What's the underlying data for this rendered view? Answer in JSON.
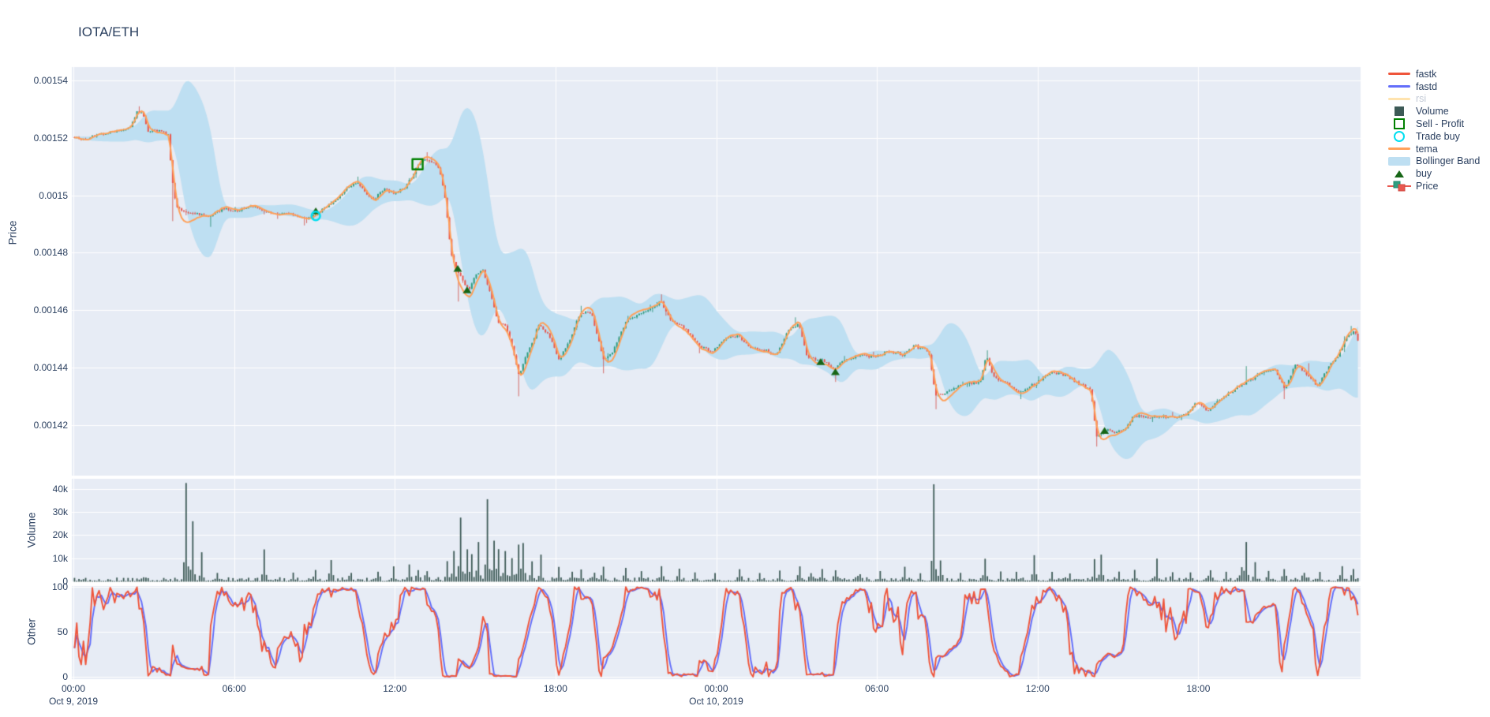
{
  "title": "IOTA/ETH",
  "colors": {
    "panel_bg": "#E7ECF5",
    "grid": "#ffffff",
    "text": "#2a3f5f",
    "text_faded": "#c3cad6",
    "up": "#2f9e80",
    "up_line": "#1f8a6d",
    "down": "#e9584f",
    "down_line": "#d04a43",
    "tema": "#FFA15A",
    "band": "#BEDFF2",
    "fastk": "#EF553B",
    "fastd": "#636EFA",
    "rsi_faded": "#ffe3ae",
    "volume_bar": "#3D5A56",
    "buy": "#176617",
    "sell": "#008000",
    "trade_buy": "#00DEF0"
  },
  "axes": {
    "price": {
      "title": "Price",
      "ticks": [
        {
          "label": "0.00154",
          "value": 0.00154
        },
        {
          "label": "0.00152",
          "value": 0.00152
        },
        {
          "label": "0.0015",
          "value": 0.0015
        },
        {
          "label": "0.00148",
          "value": 0.00148
        },
        {
          "label": "0.00146",
          "value": 0.00146
        },
        {
          "label": "0.00144",
          "value": 0.00144
        },
        {
          "label": "0.00142",
          "value": 0.00142
        }
      ]
    },
    "volume": {
      "title": "Volume",
      "ticks": [
        {
          "label": "40k",
          "value": 40000
        },
        {
          "label": "30k",
          "value": 30000
        },
        {
          "label": "20k",
          "value": 20000
        },
        {
          "label": "10k",
          "value": 10000
        },
        {
          "label": "0",
          "value": 0
        }
      ]
    },
    "other": {
      "title": "Other",
      "ticks": [
        {
          "label": "100",
          "value": 100
        },
        {
          "label": "50",
          "value": 50
        },
        {
          "label": "0",
          "value": 0
        }
      ]
    },
    "x": {
      "ticks": [
        {
          "label": "00:00",
          "t": 0
        },
        {
          "label": "06:00",
          "t": 6
        },
        {
          "label": "12:00",
          "t": 12
        },
        {
          "label": "18:00",
          "t": 18
        },
        {
          "label": "00:00",
          "t": 24
        },
        {
          "label": "06:00",
          "t": 30
        },
        {
          "label": "12:00",
          "t": 36
        },
        {
          "label": "18:00",
          "t": 42
        }
      ],
      "dates": [
        {
          "label": "Oct 9, 2019",
          "t": 0
        },
        {
          "label": "Oct 10, 2019",
          "t": 24
        }
      ]
    }
  },
  "legend": [
    {
      "id": "fastk",
      "label": "fastk",
      "swatch": "line",
      "color": "#EF553B"
    },
    {
      "id": "fastd",
      "label": "fastd",
      "swatch": "line",
      "color": "#636EFA"
    },
    {
      "id": "rsi",
      "label": "rsi",
      "swatch": "line",
      "color": "#ffe3ae",
      "faded": true
    },
    {
      "id": "volume",
      "label": "Volume",
      "swatch": "square",
      "color": "#3D5A56"
    },
    {
      "id": "sell-profit",
      "label": "Sell - Profit",
      "swatch": "open-square",
      "color": "#008000"
    },
    {
      "id": "trade-buy",
      "label": "Trade buy",
      "swatch": "open-circle",
      "color": "#00DEF0"
    },
    {
      "id": "tema",
      "label": "tema",
      "swatch": "line",
      "color": "#FFA15A"
    },
    {
      "id": "bollinger",
      "label": "Bollinger Band",
      "swatch": "band",
      "color": "#BEDFF2"
    },
    {
      "id": "buy",
      "label": "buy",
      "swatch": "triangle",
      "color": "#176617"
    },
    {
      "id": "price",
      "label": "Price",
      "swatch": "candle",
      "color": "#2f9e80"
    }
  ],
  "chart_data": [
    {
      "type": "candlestick",
      "panel": "price",
      "name": "Price",
      "ylabel": "Price",
      "x_start": "Oct 9, 2019 00:00",
      "x_range_hours": [
        0,
        48
      ],
      "candle_minutes": 5,
      "ylim": [
        0.001402,
        0.0015445
      ],
      "price_anchors": [
        [
          0,
          0.0015205
        ],
        [
          0.4,
          0.0015195
        ],
        [
          0.8,
          0.001521
        ],
        [
          1.3,
          0.0015215
        ],
        [
          1.8,
          0.0015225
        ],
        [
          2.1,
          0.001524
        ],
        [
          2.35,
          0.0015295
        ],
        [
          2.55,
          0.0015285
        ],
        [
          2.75,
          0.001522
        ],
        [
          3.1,
          0.0015225
        ],
        [
          3.5,
          0.001521
        ],
        [
          3.65,
          0.0015055
        ],
        [
          3.8,
          0.0014965
        ],
        [
          4.2,
          0.0014945
        ],
        [
          4.7,
          0.001494
        ],
        [
          5.1,
          0.0014935
        ],
        [
          5.5,
          0.0014955
        ],
        [
          6,
          0.0014945
        ],
        [
          6.5,
          0.0014955
        ],
        [
          7,
          0.001495
        ],
        [
          7.5,
          0.0014935
        ],
        [
          8,
          0.0014945
        ],
        [
          8.6,
          0.0014925
        ],
        [
          9.05,
          0.0014935
        ],
        [
          9.5,
          0.0014965
        ],
        [
          9.9,
          0.0014995
        ],
        [
          10.3,
          0.0015035
        ],
        [
          10.6,
          0.0015045
        ],
        [
          10.9,
          0.0015005
        ],
        [
          11.2,
          0.0014985
        ],
        [
          11.6,
          0.0015025
        ],
        [
          11.95,
          0.0015005
        ],
        [
          12.3,
          0.0015025
        ],
        [
          12.6,
          0.0015065
        ],
        [
          12.85,
          0.0015105
        ],
        [
          13.1,
          0.0015125
        ],
        [
          13.45,
          0.0015115
        ],
        [
          13.65,
          0.0015085
        ],
        [
          13.85,
          0.0014985
        ],
        [
          14.05,
          0.0014795
        ],
        [
          14.3,
          0.0014735
        ],
        [
          14.55,
          0.0014695
        ],
        [
          14.75,
          0.0014675
        ],
        [
          15,
          0.0014725
        ],
        [
          15.25,
          0.0014745
        ],
        [
          15.55,
          0.0014645
        ],
        [
          15.8,
          0.0014555
        ],
        [
          16.1,
          0.0014545
        ],
        [
          16.35,
          0.0014465
        ],
        [
          16.6,
          0.0014365
        ],
        [
          16.8,
          0.0014425
        ],
        [
          17.1,
          0.0014485
        ],
        [
          17.35,
          0.0014555
        ],
        [
          17.7,
          0.0014515
        ],
        [
          18.1,
          0.0014425
        ],
        [
          18.5,
          0.0014495
        ],
        [
          18.9,
          0.0014595
        ],
        [
          19.3,
          0.0014595
        ],
        [
          19.75,
          0.0014435
        ],
        [
          20.1,
          0.0014455
        ],
        [
          20.55,
          0.0014555
        ],
        [
          21,
          0.0014585
        ],
        [
          21.5,
          0.0014605
        ],
        [
          21.9,
          0.0014625
        ],
        [
          22.3,
          0.0014555
        ],
        [
          22.8,
          0.0014535
        ],
        [
          23.3,
          0.0014475
        ],
        [
          23.8,
          0.0014455
        ],
        [
          24.3,
          0.0014505
        ],
        [
          24.8,
          0.0014515
        ],
        [
          25.2,
          0.0014475
        ],
        [
          25.7,
          0.0014465
        ],
        [
          26.2,
          0.0014445
        ],
        [
          26.65,
          0.0014525
        ],
        [
          27.05,
          0.0014555
        ],
        [
          27.35,
          0.0014435
        ],
        [
          27.9,
          0.0014425
        ],
        [
          28.4,
          0.0014395
        ],
        [
          28.8,
          0.0014425
        ],
        [
          29.3,
          0.0014445
        ],
        [
          29.8,
          0.0014435
        ],
        [
          30.3,
          0.0014455
        ],
        [
          30.9,
          0.0014445
        ],
        [
          31.4,
          0.0014475
        ],
        [
          31.9,
          0.0014455
        ],
        [
          32.15,
          0.0014305
        ],
        [
          32.6,
          0.0014315
        ],
        [
          33.2,
          0.0014345
        ],
        [
          33.8,
          0.0014355
        ],
        [
          34.05,
          0.0014445
        ],
        [
          34.35,
          0.0014365
        ],
        [
          34.9,
          0.0014345
        ],
        [
          35.3,
          0.0014315
        ],
        [
          35.9,
          0.0014345
        ],
        [
          36.5,
          0.0014385
        ],
        [
          37,
          0.0014375
        ],
        [
          37.5,
          0.0014345
        ],
        [
          37.95,
          0.0014325
        ],
        [
          38.15,
          0.0014165
        ],
        [
          38.5,
          0.0014185
        ],
        [
          38.9,
          0.0014175
        ],
        [
          39.2,
          0.0014185
        ],
        [
          39.6,
          0.0014235
        ],
        [
          40.2,
          0.0014225
        ],
        [
          40.9,
          0.0014225
        ],
        [
          41.5,
          0.0014235
        ],
        [
          41.9,
          0.0014275
        ],
        [
          42.3,
          0.0014245
        ],
        [
          42.8,
          0.0014295
        ],
        [
          43.3,
          0.0014325
        ],
        [
          43.8,
          0.0014355
        ],
        [
          44.3,
          0.0014375
        ],
        [
          44.8,
          0.0014395
        ],
        [
          45.2,
          0.0014325
        ],
        [
          45.6,
          0.0014405
        ],
        [
          46,
          0.0014375
        ],
        [
          46.4,
          0.0014335
        ],
        [
          46.8,
          0.0014395
        ],
        [
          47.2,
          0.0014445
        ],
        [
          47.55,
          0.0014515
        ],
        [
          47.8,
          0.0014525
        ],
        [
          48,
          0.0014465
        ]
      ],
      "wick_lows": [
        [
          3.65,
          0.001491
        ],
        [
          5.1,
          0.001489
        ],
        [
          8.6,
          0.0014895
        ],
        [
          14.3,
          0.001463
        ],
        [
          16.6,
          0.00143
        ],
        [
          19.75,
          0.001438
        ],
        [
          23.3,
          0.001445
        ],
        [
          28.45,
          0.001435
        ],
        [
          32.2,
          0.0014255
        ],
        [
          35.3,
          0.001429
        ],
        [
          38.2,
          0.0014125
        ],
        [
          45.2,
          0.001429
        ]
      ],
      "wick_highs": [
        [
          2.4,
          0.001531
        ],
        [
          10.55,
          0.0015065
        ],
        [
          13.15,
          0.001515
        ],
        [
          18.95,
          0.0014615
        ],
        [
          21.95,
          0.0014655
        ],
        [
          26.9,
          0.0014575
        ],
        [
          34.05,
          0.001446
        ],
        [
          43.75,
          0.0014405
        ],
        [
          46.05,
          0.0014415
        ],
        [
          47.65,
          0.0014545
        ]
      ],
      "overlays": [
        {
          "name": "tema",
          "type": "tema",
          "period": 9,
          "color": "#FFA15A"
        },
        {
          "name": "Bollinger Band",
          "type": "bollinger",
          "window": 20,
          "stdev_mult": 2.1,
          "color": "#BEDFF2"
        },
        {
          "name": "rsi",
          "visible": false
        }
      ],
      "markers": {
        "buy": [
          [
            9.05,
            0.0014945
          ],
          [
            14.35,
            0.0014745
          ],
          [
            14.7,
            0.001467
          ],
          [
            27.9,
            0.001442
          ],
          [
            28.45,
            0.0014385
          ],
          [
            38.5,
            0.001418
          ]
        ],
        "trade_buy": [
          [
            9.05,
            0.0014928
          ]
        ],
        "sell_profit": [
          [
            12.85,
            0.0015108
          ]
        ]
      }
    },
    {
      "type": "bar",
      "panel": "volume",
      "name": "Volume",
      "ylabel": "Volume",
      "ylim": [
        0,
        45000
      ],
      "base_volume_range": [
        150,
        1800
      ],
      "volume_spikes": [
        [
          4.2,
          40500
        ],
        [
          4.45,
          24000
        ],
        [
          4.75,
          11500
        ],
        [
          5.3,
          4000
        ],
        [
          7.1,
          13000
        ],
        [
          8.2,
          3500
        ],
        [
          9,
          4500
        ],
        [
          9.6,
          10000
        ],
        [
          10.3,
          4000
        ],
        [
          11.3,
          4500
        ],
        [
          11.9,
          6000
        ],
        [
          12.5,
          7500
        ],
        [
          12.85,
          5000
        ],
        [
          13.2,
          4500
        ],
        [
          13.9,
          9000
        ],
        [
          14.15,
          14500
        ],
        [
          14.4,
          25500
        ],
        [
          14.65,
          13000
        ],
        [
          14.85,
          11000
        ],
        [
          15.05,
          16000
        ],
        [
          15.45,
          35500
        ],
        [
          15.65,
          18500
        ],
        [
          15.85,
          13500
        ],
        [
          16.05,
          12000
        ],
        [
          16.35,
          10500
        ],
        [
          16.55,
          15000
        ],
        [
          16.75,
          15500
        ],
        [
          17.05,
          9500
        ],
        [
          17.45,
          11000
        ],
        [
          18.05,
          6500
        ],
        [
          18.55,
          4500
        ],
        [
          18.9,
          5500
        ],
        [
          19.4,
          4000
        ],
        [
          19.75,
          7000
        ],
        [
          20.55,
          5500
        ],
        [
          21.2,
          4000
        ],
        [
          21.9,
          6500
        ],
        [
          22.6,
          5000
        ],
        [
          23.2,
          4200
        ],
        [
          23.9,
          3500
        ],
        [
          24.8,
          5500
        ],
        [
          25.6,
          3800
        ],
        [
          26.3,
          4800
        ],
        [
          27.1,
          6500
        ],
        [
          27.5,
          3600
        ],
        [
          27.9,
          5200
        ],
        [
          28.4,
          4800
        ],
        [
          29.3,
          3400
        ],
        [
          30.1,
          4200
        ],
        [
          31,
          6200
        ],
        [
          31.6,
          3800
        ],
        [
          32.1,
          39000
        ],
        [
          32.35,
          8500
        ],
        [
          33.1,
          3600
        ],
        [
          34,
          10500
        ],
        [
          34.6,
          4200
        ],
        [
          35.2,
          3800
        ],
        [
          35.85,
          11000
        ],
        [
          36.5,
          4500
        ],
        [
          37.2,
          3500
        ],
        [
          38.1,
          9000
        ],
        [
          38.35,
          12500
        ],
        [
          39,
          4500
        ],
        [
          39.6,
          5200
        ],
        [
          40.4,
          9200
        ],
        [
          41,
          4200
        ],
        [
          41.7,
          3600
        ],
        [
          42.4,
          5000
        ],
        [
          43,
          4400
        ],
        [
          43.55,
          6500
        ],
        [
          43.75,
          15500
        ],
        [
          44.05,
          7800
        ],
        [
          44.6,
          4200
        ],
        [
          45.2,
          5200
        ],
        [
          45.9,
          4000
        ],
        [
          46.5,
          4400
        ],
        [
          47.3,
          7200
        ],
        [
          47.75,
          5600
        ]
      ]
    },
    {
      "type": "line",
      "panel": "other",
      "name": "Other",
      "ylabel": "Other",
      "ylim": [
        0,
        100
      ],
      "series": [
        {
          "name": "fastk",
          "derive": "stochastic_k",
          "window": 14,
          "color": "#EF553B"
        },
        {
          "name": "fastd",
          "derive": "sma_of_fastk",
          "window": 3,
          "color": "#636EFA"
        }
      ]
    }
  ]
}
